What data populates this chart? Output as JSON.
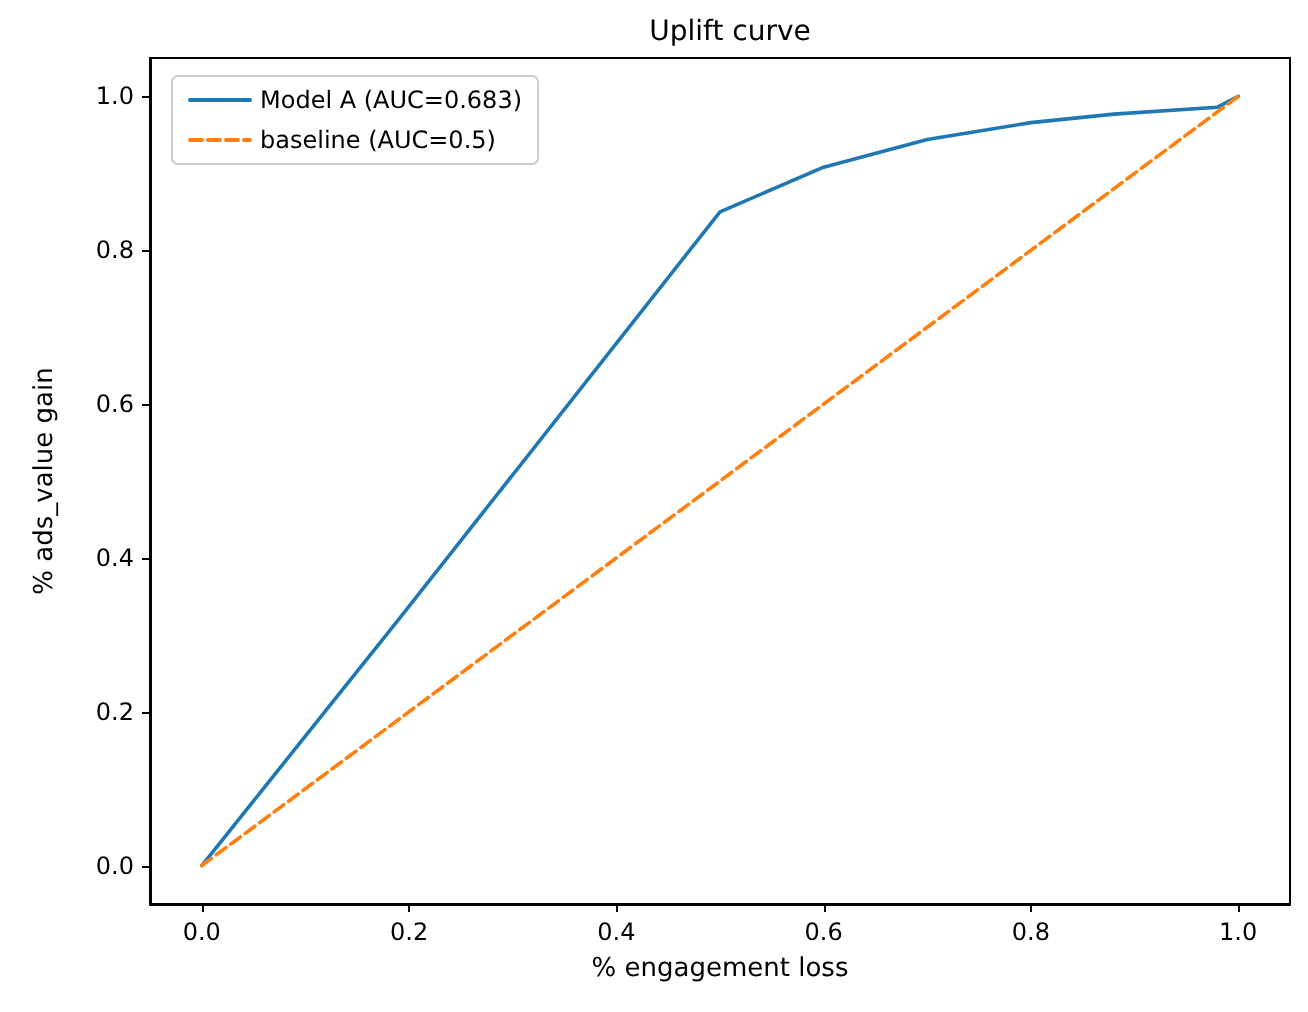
{
  "chart_data": {
    "type": "line",
    "title": "Uplift curve",
    "xlabel": "% engagement loss",
    "ylabel": "% ads_value gain",
    "series": [
      {
        "name": "Model A (AUC=0.683)",
        "color": "#1f77b4",
        "line_style": "solid",
        "x": [
          0,
          0.19,
          0.5,
          0.6,
          0.7,
          0.8,
          0.88,
          0.98,
          1
        ],
        "values": [
          0,
          0.32,
          0.85,
          0.908,
          0.944,
          0.966,
          0.977,
          0.986,
          1
        ]
      },
      {
        "name": "baseline (AUC=0.5)",
        "color": "#ff7f0e",
        "line_style": "dashed",
        "x": [
          0,
          1
        ],
        "values": [
          0,
          1
        ]
      }
    ],
    "xlim": [
      -0.05,
      1.05
    ],
    "ylim": [
      -0.05,
      1.05
    ],
    "xticks": [
      {
        "value": 0,
        "label": "0.0"
      },
      0.2,
      0.4,
      0.6,
      0.8,
      {
        "value": 1,
        "label": "1.0"
      }
    ],
    "yticks": [
      {
        "value": 0,
        "label": "0.0"
      },
      0.2,
      0.4,
      0.6,
      0.8,
      {
        "value": 1,
        "label": "1.0"
      }
    ],
    "grid": false,
    "legend": "top left",
    "marker": "none"
  }
}
